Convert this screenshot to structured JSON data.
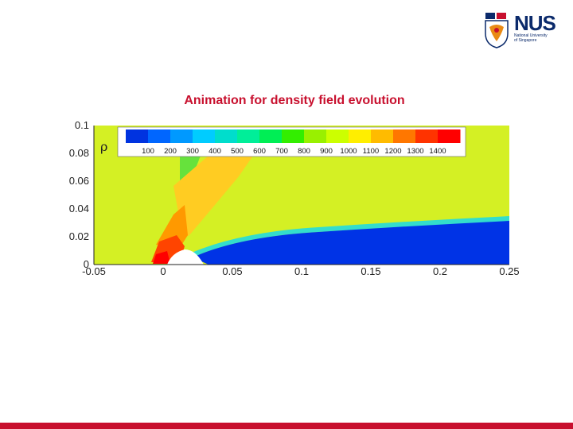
{
  "slide": {
    "title": "Animation for density field evolution"
  },
  "logo": {
    "wordmark": "NUS",
    "subtitle": "National University of Singapore",
    "colors": {
      "navy": "#0b2a6b",
      "red": "#c8102e",
      "orange": "#e98a15"
    }
  },
  "chart_data": {
    "type": "heatmap",
    "title": "",
    "xlabel": "",
    "ylabel": "",
    "xlim": [
      -0.05,
      0.25
    ],
    "ylim": [
      0,
      0.1
    ],
    "x_ticks": [
      "-0.05",
      "0",
      "0.05",
      "0.1",
      "0.15",
      "0.2",
      "0.25"
    ],
    "y_ticks": [
      "0",
      "0.02",
      "0.04",
      "0.06",
      "0.08",
      "0.1"
    ],
    "colorbar": {
      "variable": "ρ",
      "levels": [
        "100",
        "200",
        "300",
        "400",
        "500",
        "600",
        "700",
        "800",
        "900",
        "1000",
        "1100",
        "1200",
        "1300",
        "1400"
      ],
      "colors": [
        "#0033e0",
        "#0066ff",
        "#0099ff",
        "#00ccff",
        "#00ddcc",
        "#00ee99",
        "#00ee55",
        "#33ee00",
        "#99f000",
        "#ccff00",
        "#ffee00",
        "#ffbb00",
        "#ff7700",
        "#ff3300",
        "#ff0000"
      ]
    },
    "background_color": "#d4f024",
    "legend_position": "top"
  },
  "colors": {
    "accent": "#c8102e"
  }
}
